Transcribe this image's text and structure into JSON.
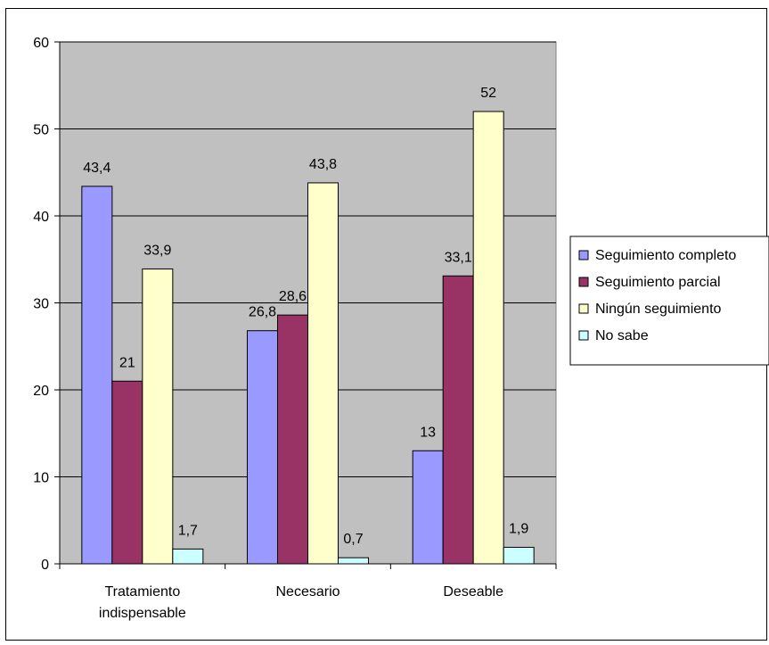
{
  "chart_data": {
    "type": "bar",
    "categories": [
      [
        "Tratamiento",
        "indispensable"
      ],
      [
        "Necesario"
      ],
      [
        "Deseable"
      ]
    ],
    "series": [
      {
        "name": "Seguimiento completo",
        "color": "#9999ff",
        "values": [
          43.4,
          26.8,
          13
        ],
        "labels": [
          "43,4",
          "26,8",
          "13"
        ]
      },
      {
        "name": "Seguimiento parcial",
        "color": "#993366",
        "values": [
          21,
          28.6,
          33.1
        ],
        "labels": [
          "21",
          "28,6",
          "33,1"
        ]
      },
      {
        "name": "Ningún seguimiento",
        "color": "#ffffcc",
        "values": [
          33.9,
          43.8,
          52
        ],
        "labels": [
          "33,9",
          "43,8",
          "52"
        ]
      },
      {
        "name": "No sabe",
        "color": "#ccffff",
        "values": [
          1.7,
          0.7,
          1.9
        ],
        "labels": [
          "1,7",
          "0,7",
          "1,9"
        ]
      }
    ],
    "ylim": [
      0,
      60
    ],
    "yticks": [
      "0",
      "10",
      "20",
      "30",
      "40",
      "50",
      "60"
    ],
    "grid": true,
    "plot_background": "#c0c0c0",
    "legend_position": "right"
  }
}
